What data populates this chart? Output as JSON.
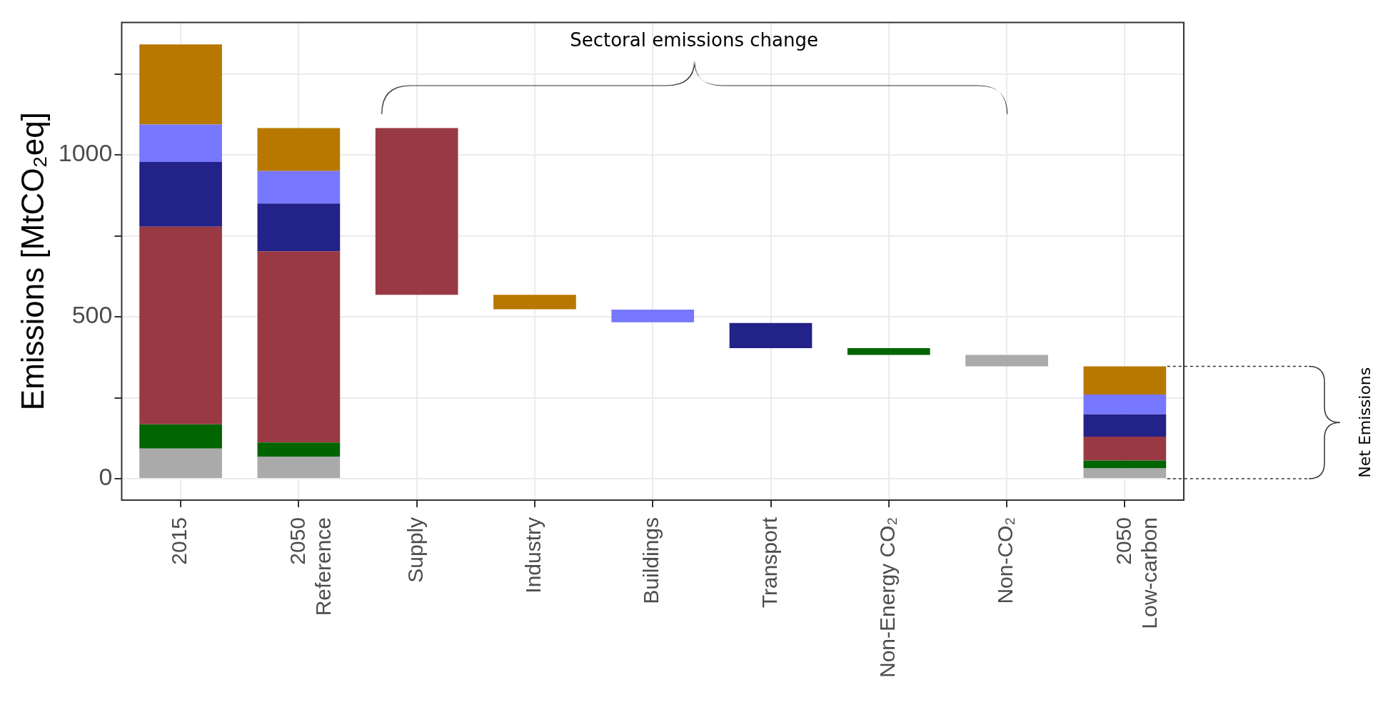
{
  "chart_data": {
    "type": "bar",
    "stacked": true,
    "categories": [
      "2015",
      "2050\nReference",
      "Supply",
      "Industry",
      "Buildings",
      "Transport",
      "Non-Energy CO₂",
      "Non-CO₂",
      "2050\nLow-carbon"
    ],
    "ylabel": "Emissions [MtCO₂eq]",
    "ylim": [
      -66,
      1409
    ],
    "yticks": [
      0,
      {
        "value": 250,
        "label": null
      },
      500,
      {
        "value": 750,
        "label": null
      },
      1000,
      {
        "value": 1250,
        "label": null
      }
    ],
    "grid": true,
    "series": [
      {
        "color": "#aaaaaa",
        "values": [
          93,
          68,
          null,
          null,
          null,
          null,
          null,
          35,
          32
        ],
        "base": [
          null,
          null,
          null,
          null,
          null,
          null,
          null,
          347,
          null
        ]
      },
      {
        "color": "#006400",
        "values": [
          75,
          44,
          null,
          null,
          null,
          null,
          21,
          null,
          24
        ],
        "base": [
          null,
          null,
          null,
          null,
          null,
          null,
          382,
          null,
          null
        ]
      },
      {
        "color": "#993944",
        "values": [
          610,
          590,
          515,
          null,
          null,
          null,
          null,
          null,
          74
        ],
        "base": [
          null,
          null,
          568,
          null,
          null,
          null,
          null,
          null,
          null
        ]
      },
      {
        "color": "#222288",
        "values": [
          200,
          148,
          null,
          null,
          null,
          78,
          null,
          null,
          69
        ],
        "base": [
          null,
          null,
          null,
          null,
          null,
          403,
          null,
          null,
          null
        ]
      },
      {
        "color": "#7777ff",
        "values": [
          116,
          100,
          null,
          null,
          39,
          null,
          null,
          null,
          61
        ],
        "base": [
          null,
          null,
          null,
          null,
          483,
          null,
          null,
          null,
          null
        ]
      },
      {
        "color": "#b87800",
        "values": [
          247,
          133,
          null,
          45,
          null,
          null,
          null,
          null,
          87
        ],
        "base": [
          null,
          null,
          null,
          523,
          null,
          null,
          null,
          null,
          null
        ]
      }
    ],
    "annotations": [
      "Sectoral emissions change",
      "Net Emissions"
    ]
  }
}
